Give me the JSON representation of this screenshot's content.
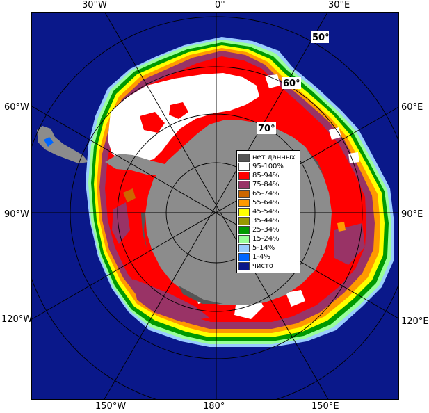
{
  "map": {
    "colors": {
      "ocean": "#0a188a",
      "land": "#8c8c8c",
      "ice_100": "#ffffff",
      "ice_85": "#ff0000",
      "ice_75": "#993366",
      "ice_65": "#cc6600",
      "ice_55": "#ff9900",
      "ice_45": "#ffff00",
      "ice_35": "#999900",
      "ice_25": "#009900",
      "ice_15": "#99ff99",
      "ice_5": "#99ccff",
      "ice_1": "#0066ff"
    }
  },
  "lon_labels": {
    "top_30w": "30°W",
    "top_0": "0°",
    "top_30e": "30°E",
    "left_60w": "60°W",
    "left_90w": "90°W",
    "left_120w": "120°W",
    "right_60e": "60°E",
    "right_90e": "90°E",
    "right_120e": "120°E",
    "bottom_150w": "150°W",
    "bottom_180": "180°",
    "bottom_150e": "150°E"
  },
  "lat_labels": {
    "lat50": "50°",
    "lat60": "60°",
    "lat70": "70°"
  },
  "legend": {
    "items": [
      {
        "label": "нет данных",
        "color": "#555555"
      },
      {
        "label": "95-100%",
        "color": "#ffffff"
      },
      {
        "label": "85-94%",
        "color": "#ff0000"
      },
      {
        "label": "75-84%",
        "color": "#993366"
      },
      {
        "label": "65-74%",
        "color": "#cc6600"
      },
      {
        "label": "55-64%",
        "color": "#ff9900"
      },
      {
        "label": "45-54%",
        "color": "#ffff00"
      },
      {
        "label": "35-44%",
        "color": "#999900"
      },
      {
        "label": "25-34%",
        "color": "#009900"
      },
      {
        "label": "15-24%",
        "color": "#99ff99"
      },
      {
        "label": "5-14%",
        "color": "#99ccff"
      },
      {
        "label": "1-4%",
        "color": "#0066ff"
      },
      {
        "label": "чисто",
        "color": "#0a188a"
      }
    ]
  }
}
